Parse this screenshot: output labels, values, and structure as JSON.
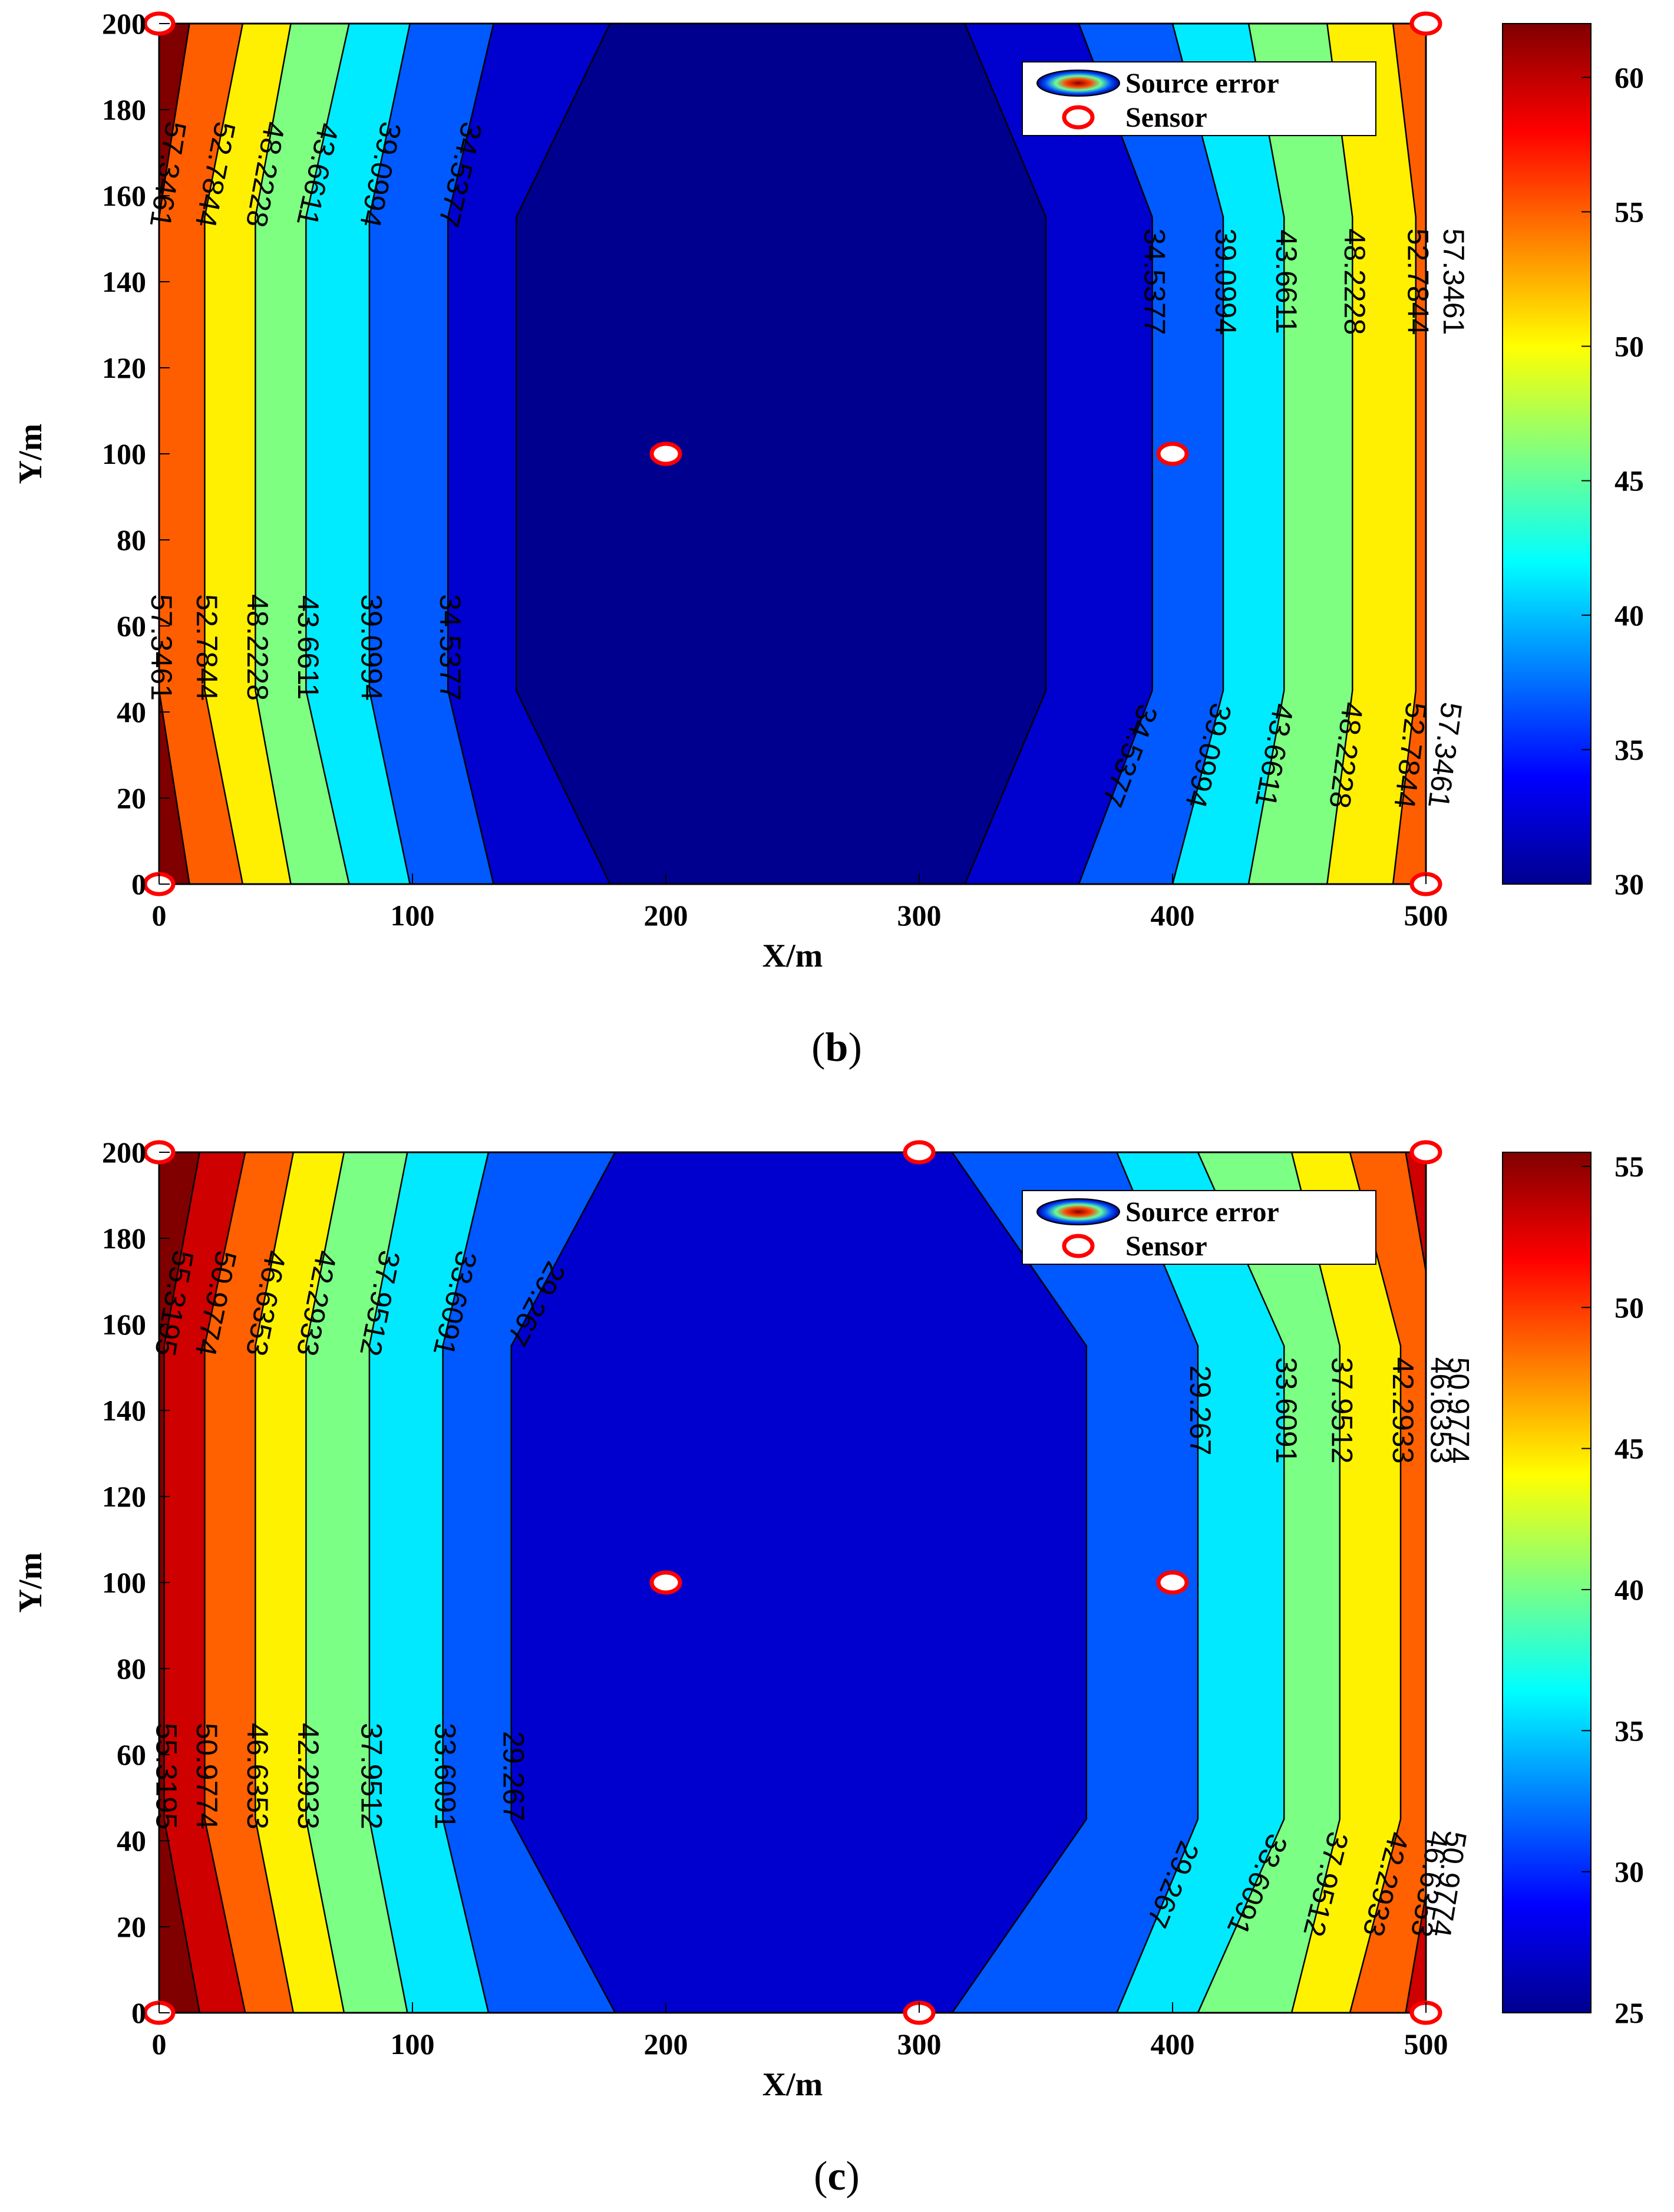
{
  "chart_data": [
    {
      "type": "contour",
      "panel_label": "b",
      "xlabel": "X/m",
      "ylabel": "Y/m",
      "xlim": [
        0,
        500
      ],
      "ylim": [
        0,
        200
      ],
      "xticks": [
        "0",
        "100",
        "200",
        "300",
        "400",
        "500"
      ],
      "yticks": [
        "0",
        "20",
        "40",
        "60",
        "80",
        "100",
        "120",
        "140",
        "160",
        "180",
        "200"
      ],
      "colorbar": {
        "min": 30,
        "max": 62,
        "ticks": [
          "30",
          "35",
          "40",
          "45",
          "50",
          "55",
          "60"
        ]
      },
      "legend": {
        "source_label": "Source error",
        "sensor_label": "Sensor"
      },
      "sensors": [
        [
          0,
          0
        ],
        [
          0,
          200
        ],
        [
          500,
          0
        ],
        [
          500,
          200
        ],
        [
          200,
          100
        ],
        [
          400,
          100
        ]
      ],
      "contour_levels": [
        57.3461,
        52.7844,
        48.2228,
        43.6611,
        39.0994,
        34.5377
      ],
      "contour_labels": [
        "57.3461",
        "52.7844",
        "48.2228",
        "43.6611",
        "39.0994",
        "34.5377"
      ],
      "left_boundaries": [
        {
          "level": 57.3461,
          "x": [
            12,
            0,
            0,
            12
          ]
        },
        {
          "level": 52.7844,
          "x": [
            33,
            18,
            18,
            33
          ]
        },
        {
          "level": 48.2228,
          "x": [
            52,
            38,
            38,
            52
          ]
        },
        {
          "level": 43.6611,
          "x": [
            75,
            58,
            58,
            75
          ]
        },
        {
          "level": 39.0994,
          "x": [
            99,
            83,
            83,
            99
          ]
        },
        {
          "level": 34.5377,
          "x": [
            132,
            114,
            114,
            132
          ]
        },
        {
          "level": 30,
          "x": [
            178,
            141,
            141,
            178
          ]
        }
      ],
      "right_boundaries": [
        {
          "level": 30,
          "x": [
            318,
            350,
            350,
            318
          ]
        },
        {
          "level": 34.5377,
          "x": [
            363,
            392,
            392,
            363
          ]
        },
        {
          "level": 39.0994,
          "x": [
            400,
            420,
            420,
            400
          ]
        },
        {
          "level": 43.6611,
          "x": [
            430,
            444,
            444,
            430
          ]
        },
        {
          "level": 48.2228,
          "x": [
            461,
            471,
            471,
            461
          ]
        },
        {
          "level": 52.7844,
          "x": [
            487,
            496,
            496,
            487
          ]
        },
        {
          "level": 57.3461,
          "x": [
            500,
            510,
            510,
            500
          ]
        }
      ]
    },
    {
      "type": "contour",
      "panel_label": "c",
      "xlabel": "X/m",
      "ylabel": "Y/m",
      "xlim": [
        0,
        500
      ],
      "ylim": [
        0,
        200
      ],
      "xticks": [
        "0",
        "100",
        "200",
        "300",
        "400",
        "500"
      ],
      "yticks": [
        "0",
        "20",
        "40",
        "60",
        "80",
        "100",
        "120",
        "140",
        "160",
        "180",
        "200"
      ],
      "colorbar": {
        "min": 25,
        "max": 55.5,
        "ticks": [
          "25",
          "30",
          "35",
          "40",
          "45",
          "50",
          "55"
        ]
      },
      "legend": {
        "source_label": "Source error",
        "sensor_label": "Sensor"
      },
      "sensors": [
        [
          0,
          0
        ],
        [
          0,
          200
        ],
        [
          300,
          0
        ],
        [
          300,
          200
        ],
        [
          500,
          0
        ],
        [
          500,
          200
        ],
        [
          200,
          100
        ],
        [
          400,
          100
        ]
      ],
      "contour_levels": [
        55.3195,
        50.9774,
        46.6353,
        42.2933,
        37.9512,
        33.6091,
        29.267
      ],
      "contour_labels": [
        "55.3195",
        "50.9774",
        "46.6353",
        "42.2933",
        "37.9512",
        "33.6091",
        "29.267"
      ],
      "left_boundaries": [
        {
          "level": 55.3195,
          "x": [
            16,
            2,
            2,
            16
          ]
        },
        {
          "level": 50.9774,
          "x": [
            34,
            18,
            18,
            34
          ]
        },
        {
          "level": 46.6353,
          "x": [
            53,
            38,
            38,
            53
          ]
        },
        {
          "level": 42.2933,
          "x": [
            73,
            58,
            58,
            73
          ]
        },
        {
          "level": 37.9512,
          "x": [
            98,
            83,
            83,
            98
          ]
        },
        {
          "level": 33.6091,
          "x": [
            130,
            112,
            112,
            130
          ]
        },
        {
          "level": 29.267,
          "x": [
            180,
            139,
            139,
            180
          ]
        }
      ],
      "right_boundaries": [
        {
          "level": 25,
          "x": [
            313,
            366,
            366,
            313
          ]
        },
        {
          "level": 29.267,
          "x": [
            378,
            410,
            410,
            378
          ]
        },
        {
          "level": 33.6091,
          "x": [
            410,
            444,
            444,
            410
          ]
        },
        {
          "level": 37.9512,
          "x": [
            447,
            466,
            466,
            447
          ]
        },
        {
          "level": 42.2933,
          "x": [
            470,
            490,
            490,
            470
          ]
        },
        {
          "level": 46.6353,
          "x": [
            492,
            505,
            505,
            492
          ]
        },
        {
          "level": 50.9774,
          "x": [
            500,
            512,
            512,
            500
          ]
        }
      ]
    }
  ]
}
